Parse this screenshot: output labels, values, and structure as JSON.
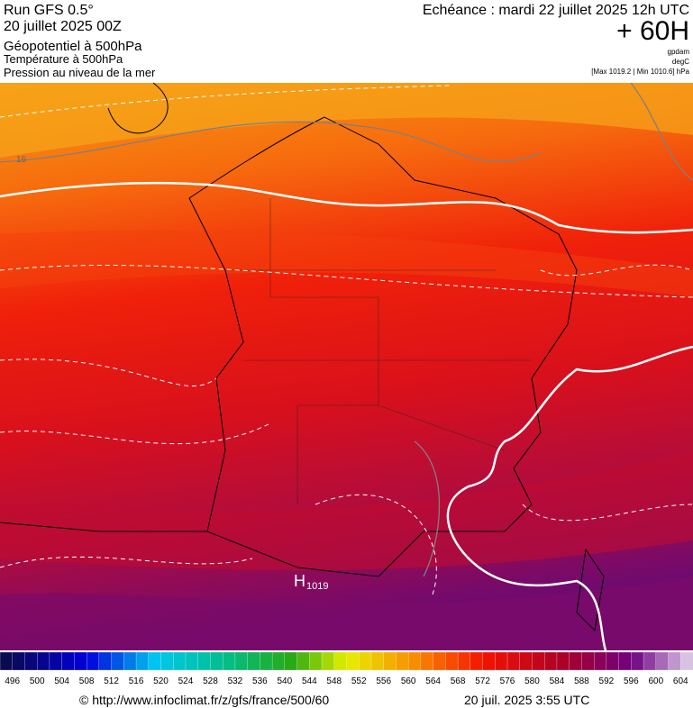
{
  "header": {
    "run": "Run GFS 0.5°",
    "run_date": "20 juillet 2025 00Z",
    "field_1": "Géopotentiel à 500hPa",
    "field_2": "Température à 500hPa",
    "field_3": "Pression au niveau de la mer",
    "valid_time": "Echéance : mardi 22 juillet 2025 12h UTC",
    "lead": "+ 60H",
    "unit_1": "gpdam",
    "unit_2": "degC",
    "pressure_range": "[Max 1019.2 | Min 1010.6] hPa"
  },
  "map": {
    "contour_label": "16",
    "high_symbol": "H",
    "high_value": "1019"
  },
  "legend": {
    "labels": [
      496,
      500,
      504,
      508,
      512,
      516,
      520,
      524,
      528,
      532,
      536,
      540,
      544,
      548,
      552,
      556,
      560,
      564,
      568,
      572,
      576,
      580,
      584,
      588,
      592,
      596,
      600,
      604
    ]
  },
  "footer": {
    "source": "© http://www.infoclimat.fr/z/gfs/france/500/60",
    "generated": "20 juil. 2025  3:55 UTC"
  }
}
